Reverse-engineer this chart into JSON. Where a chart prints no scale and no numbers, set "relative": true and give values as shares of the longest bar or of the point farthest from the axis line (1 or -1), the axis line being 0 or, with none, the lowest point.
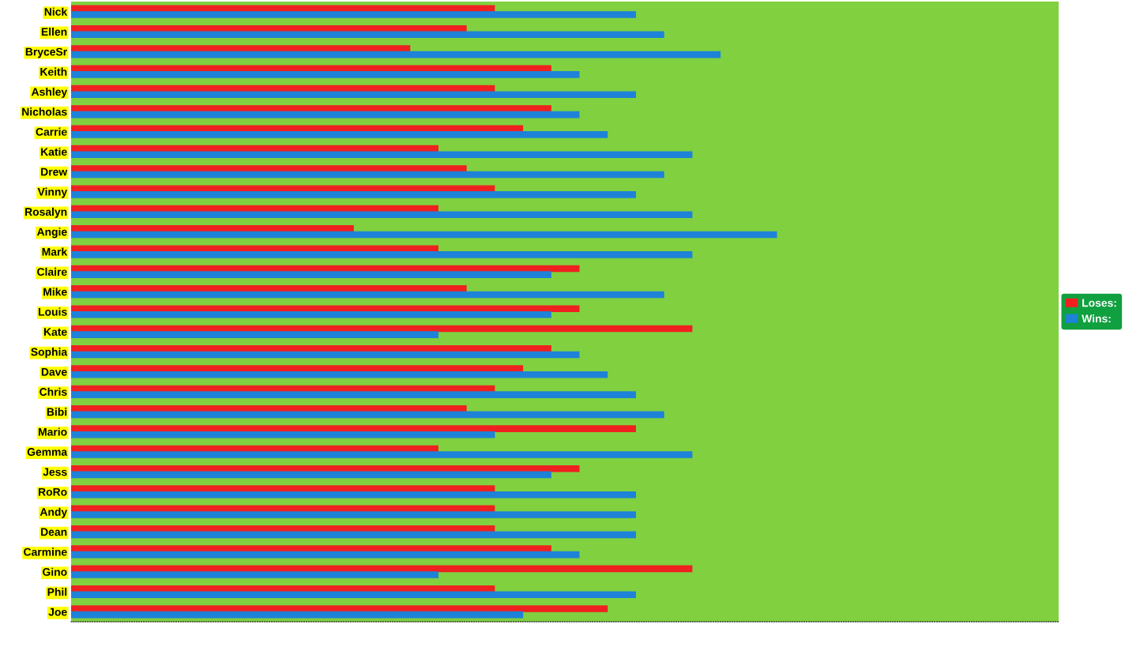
{
  "chart_data": {
    "type": "bar",
    "orientation": "horizontal",
    "relative": true,
    "legend": "right",
    "categories": [
      "Nick",
      "Ellen",
      "BryceSr",
      "Keith",
      "Ashley",
      "Nicholas",
      "Carrie",
      "Katie",
      "Drew",
      "Vinny",
      "Rosalyn",
      "Angie",
      "Mark",
      "Claire",
      "Mike",
      "Louis",
      "Kate",
      "Sophia",
      "Dave",
      "Chris",
      "Bibi",
      "Mario",
      "Gemma",
      "Jess",
      "RoRo",
      "Andy",
      "Dean",
      "Carmine",
      "Gino",
      "Phil",
      "Joe"
    ],
    "series": [
      {
        "name": "Loses:",
        "color": "#f02020",
        "values": [
          0.6,
          0.56,
          0.48,
          0.68,
          0.6,
          0.68,
          0.64,
          0.52,
          0.56,
          0.6,
          0.52,
          0.4,
          0.52,
          0.72,
          0.56,
          0.72,
          0.88,
          0.68,
          0.64,
          0.6,
          0.56,
          0.8,
          0.52,
          0.72,
          0.6,
          0.6,
          0.6,
          0.68,
          0.88,
          0.6,
          0.76
        ]
      },
      {
        "name": "Wins:",
        "color": "#1e82d8",
        "values": [
          0.8,
          0.84,
          0.92,
          0.72,
          0.8,
          0.72,
          0.76,
          0.88,
          0.84,
          0.8,
          0.88,
          1,
          0.88,
          0.68,
          0.84,
          0.68,
          0.52,
          0.72,
          0.76,
          0.8,
          0.84,
          0.6,
          0.88,
          0.68,
          0.8,
          0.8,
          0.8,
          0.72,
          0.52,
          0.8,
          0.64
        ]
      }
    ]
  }
}
